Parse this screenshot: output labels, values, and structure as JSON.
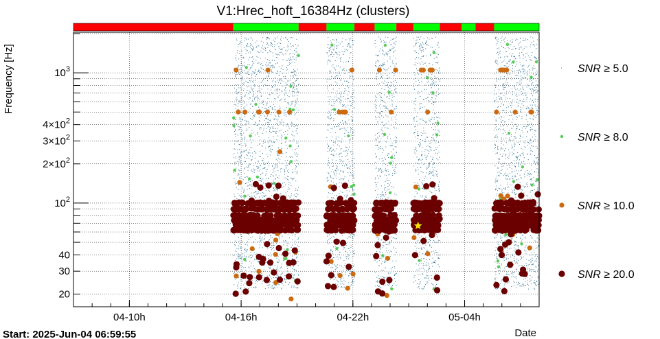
{
  "chart_data": {
    "type": "scatter",
    "title": "V1:Hrec_hoft_16384Hz (clusters)",
    "xlabel": "Date",
    "ylabel": "Frequency [Hz]",
    "x_scale": "time",
    "y_scale": "log",
    "xlim": [
      "2025-06-04 06:59:55",
      "2025-06-05 08:00:00"
    ],
    "ylim": [
      16,
      2048
    ],
    "x_ticks": [
      "04-10h",
      "04-16h",
      "04-22h",
      "05-04h"
    ],
    "y_ticks": [
      "20",
      "30",
      "40",
      "10^2",
      "2×10^2",
      "3×10^2",
      "4×10^2",
      "10^3"
    ],
    "start_label": "Start: 2025-Jun-04 06:59:55",
    "segment_bar": [
      {
        "state": "off",
        "color": "#ff0000",
        "start": "2025-06-04 06:59:55",
        "end": "2025-06-04 15:35"
      },
      {
        "state": "on",
        "color": "#00ff00",
        "start": "2025-06-04 15:35",
        "end": "2025-06-04 19:05"
      },
      {
        "state": "off",
        "color": "#ff0000",
        "start": "2025-06-04 19:05",
        "end": "2025-06-04 20:35"
      },
      {
        "state": "on",
        "color": "#00ff00",
        "start": "2025-06-04 20:35",
        "end": "2025-06-04 22:05"
      },
      {
        "state": "off",
        "color": "#ff0000",
        "start": "2025-06-04 22:05",
        "end": "2025-06-04 23:10"
      },
      {
        "state": "on",
        "color": "#00ff00",
        "start": "2025-06-04 23:10",
        "end": "2025-06-05 00:20"
      },
      {
        "state": "off",
        "color": "#ff0000",
        "start": "2025-06-05 00:20",
        "end": "2025-06-05 01:15"
      },
      {
        "state": "on",
        "color": "#00ff00",
        "start": "2025-06-05 01:15",
        "end": "2025-06-05 02:40"
      },
      {
        "state": "off",
        "color": "#ff0000",
        "start": "2025-06-05 02:40",
        "end": "2025-06-05 03:50"
      },
      {
        "state": "on",
        "color": "#00ff00",
        "start": "2025-06-05 03:50",
        "end": "2025-06-05 04:35"
      },
      {
        "state": "off",
        "color": "#ff0000",
        "start": "2025-06-05 04:35",
        "end": "2025-06-05 05:35"
      },
      {
        "state": "on",
        "color": "#00ff00",
        "start": "2025-06-05 05:35",
        "end": "2025-06-05 08:00"
      }
    ],
    "legend": [
      {
        "label": "SNR ≥ 5.0",
        "color": "#2f6f8f"
      },
      {
        "label": "SNR ≥ 8.0",
        "color": "#55cc55"
      },
      {
        "label": "SNR ≥ 10.0",
        "color": "#cc6a10"
      },
      {
        "label": "SNR ≥ 20.0",
        "color": "#6b0000"
      }
    ],
    "legend_position": "right",
    "loudest_event": {
      "time": "2025-06-05 01:30",
      "frequency": 67,
      "color": "#ffdd00",
      "marker": "star"
    },
    "clusters_approx": [
      {
        "start": "2025-06-04 15:35",
        "end": "2025-06-04 19:05"
      },
      {
        "start": "2025-06-04 20:35",
        "end": "2025-06-04 22:05"
      },
      {
        "start": "2025-06-04 23:10",
        "end": "2025-06-05 00:20"
      },
      {
        "start": "2025-06-05 01:15",
        "end": "2025-06-05 02:40"
      },
      {
        "start": "2025-06-05 05:35",
        "end": "2025-06-05 08:00"
      }
    ],
    "grid_x": true,
    "grid_y": true
  }
}
